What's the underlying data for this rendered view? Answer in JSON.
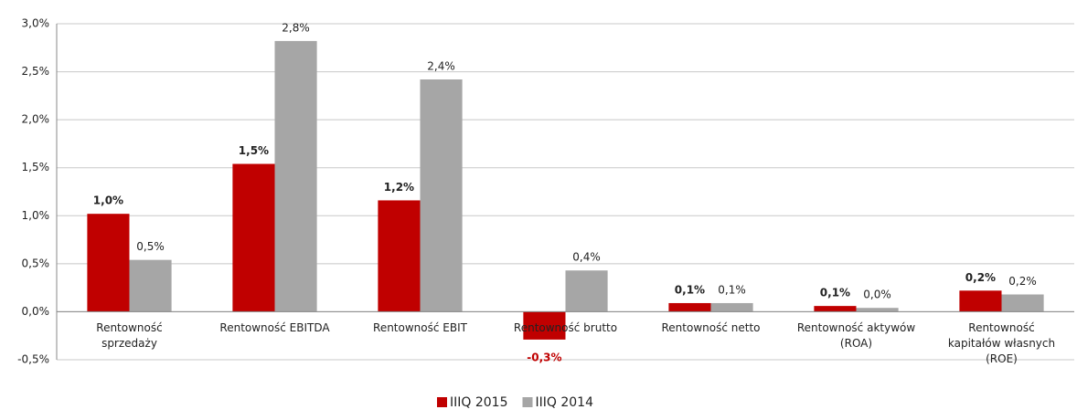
{
  "chart_data": {
    "type": "bar",
    "categories": [
      "Rentowność\nsprzedaży",
      "Rentowność EBITDA",
      "Rentowność EBIT",
      "Rentowność brutto",
      "Rentowność netto",
      "Rentowność aktywów\n(ROA)",
      "Rentowność\nkapitałów własnych\n(ROE)"
    ],
    "series": [
      {
        "name": "IIIQ 2015",
        "color": "#c00000",
        "values": [
          1.02,
          1.54,
          1.16,
          -0.29,
          0.09,
          0.06,
          0.22
        ],
        "value_labels": [
          "1,0%",
          "1,5%",
          "1,2%",
          "-0,3%",
          "0,1%",
          "0,1%",
          "0,2%"
        ]
      },
      {
        "name": "IIIQ 2014",
        "color": "#a6a6a6",
        "values": [
          0.54,
          2.82,
          2.42,
          0.43,
          0.09,
          0.04,
          0.18
        ],
        "value_labels": [
          "0,5%",
          "2,8%",
          "2,4%",
          "0,4%",
          "0,1%",
          "0,0%",
          "0,2%"
        ]
      }
    ],
    "ylim": [
      -0.5,
      3.0
    ],
    "yticks": [
      {
        "value": -0.5,
        "label": "-0,5%"
      },
      {
        "value": 0,
        "label": "0,0%"
      },
      {
        "value": 0.5,
        "label": "0,5%"
      },
      {
        "value": 1.0,
        "label": "1,0%"
      },
      {
        "value": 1.5,
        "label": "1,5%"
      },
      {
        "value": 2.0,
        "label": "2,0%"
      },
      {
        "value": 2.5,
        "label": "2,5%"
      },
      {
        "value": 3.0,
        "label": "3,0%"
      }
    ],
    "grid": true,
    "legend": "bottom"
  }
}
